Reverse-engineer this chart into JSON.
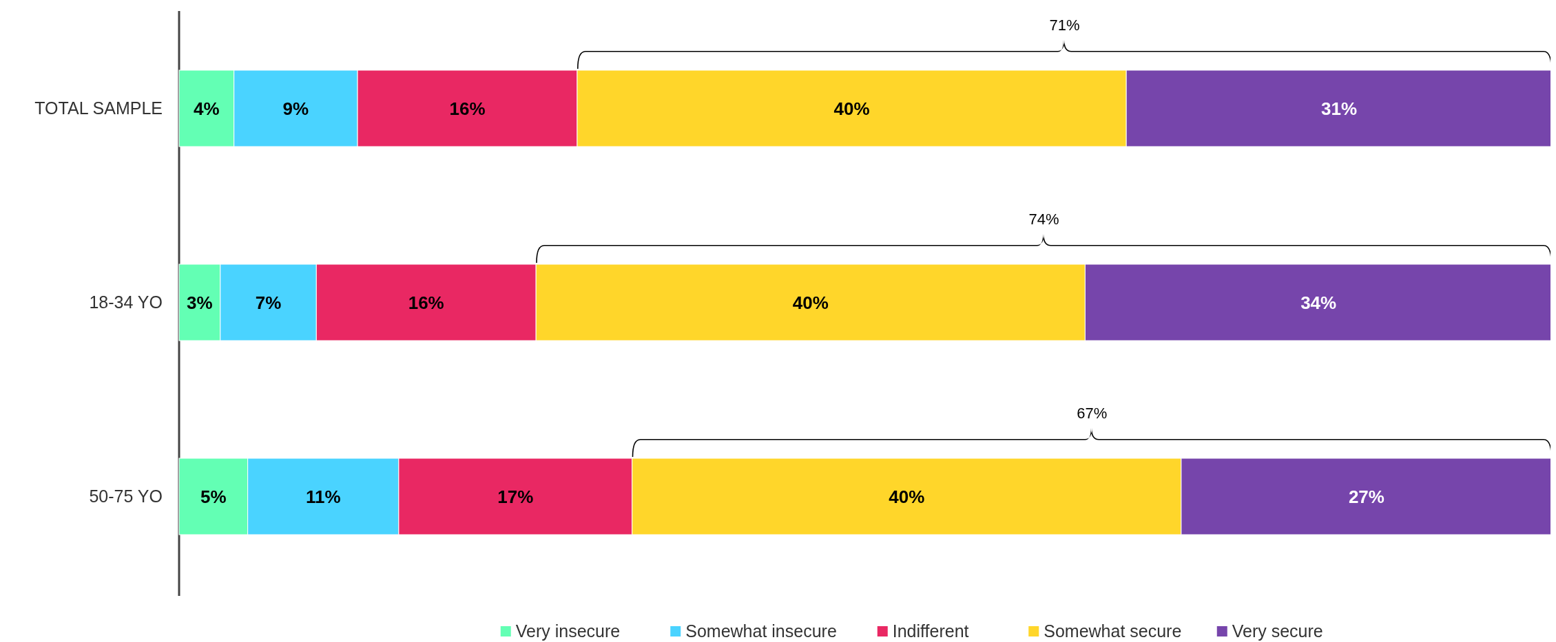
{
  "chart_data": {
    "type": "bar",
    "orientation": "horizontal",
    "stacked": true,
    "categories": [
      "TOTAL SAMPLE",
      "18-34 YO",
      "50-75 YO"
    ],
    "series": [
      {
        "name": "Very insecure",
        "color": "#63ffb4",
        "values": [
          4,
          3,
          5
        ],
        "value_labels": [
          "4%",
          "3%",
          "5%"
        ]
      },
      {
        "name": "Somewhat insecure",
        "color": "#4ad3ff",
        "values": [
          9,
          7,
          11
        ],
        "value_labels": [
          "9%",
          "7%",
          "11%"
        ]
      },
      {
        "name": "Indifferent",
        "color": "#e92863",
        "values": [
          16,
          16,
          17
        ],
        "value_labels": [
          "16%",
          "16%",
          "17%"
        ]
      },
      {
        "name": "Somewhat secure",
        "color": "#ffd62a",
        "values": [
          40,
          40,
          40
        ],
        "value_labels": [
          "40%",
          "40%",
          "40%"
        ]
      },
      {
        "name": "Very secure",
        "color": "#7645ab",
        "values": [
          31,
          34,
          27
        ],
        "value_labels": [
          "31%",
          "34%",
          "27%"
        ]
      }
    ],
    "legend": "bottom",
    "annotations": [
      "71%",
      "74%",
      "67%"
    ]
  }
}
